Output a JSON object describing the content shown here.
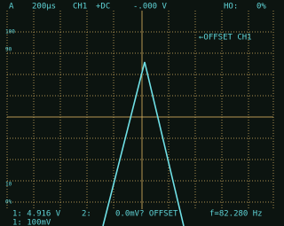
{
  "status_bar": {
    "mode": "A",
    "timebase": "200μs",
    "channel": "CH1",
    "coupling": "+DC",
    "trigger_level": "-.000 V",
    "holdoff_label": "HO:",
    "holdoff_value": "0%"
  },
  "offset_note": "←OFFSET CH1",
  "scale_labels": [
    "100",
    "90",
    "10",
    "0%"
  ],
  "readout": {
    "ch1_value": "1: 4.916 V",
    "ch2_label": "2:",
    "ch2_value": "0.0mV? OFFSET",
    "frequency": "f=82.280 Hz",
    "ch1_scale": "1: 100mV"
  }
}
